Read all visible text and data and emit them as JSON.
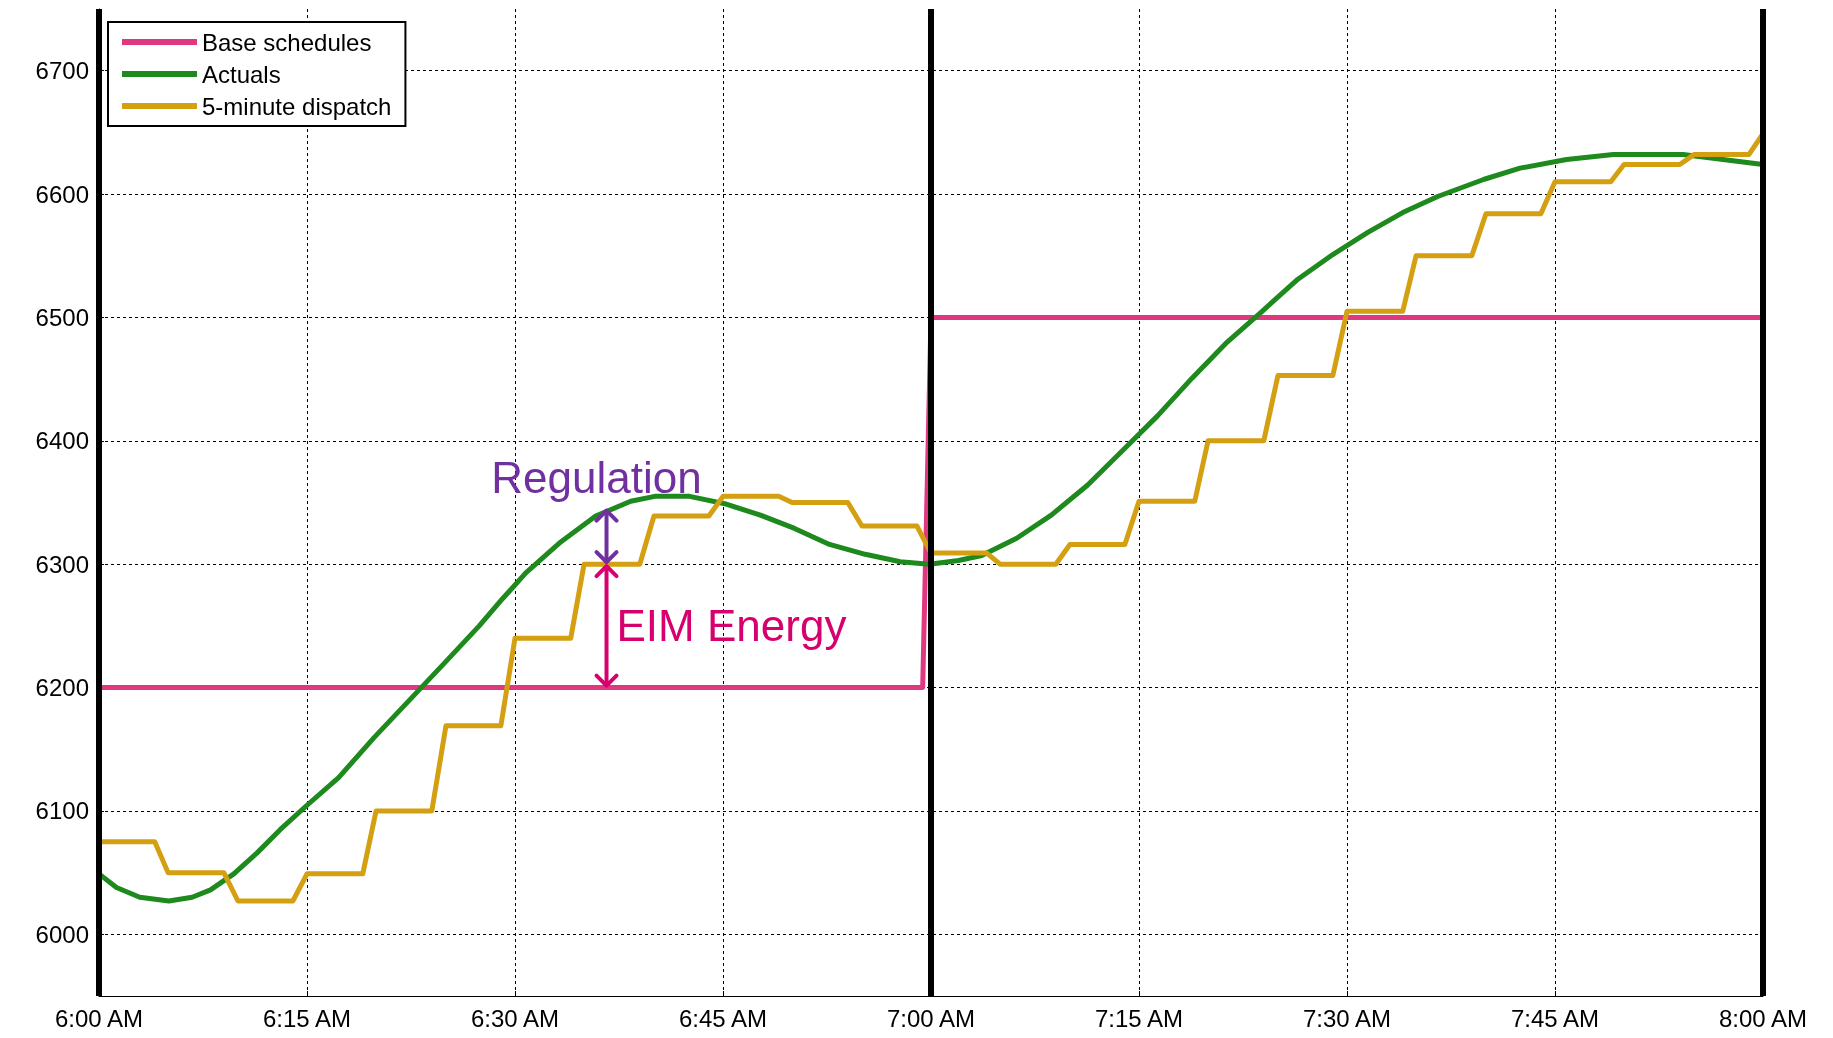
{
  "chart_data": {
    "type": "line",
    "xlim": [
      6,
      8
    ],
    "ylim": [
      5950,
      6750
    ],
    "xticks": [
      {
        "value": 6,
        "label": "6:00 AM"
      },
      {
        "value": 6.25,
        "label": "6:15 AM"
      },
      {
        "value": 6.5,
        "label": "6:30 AM"
      },
      {
        "value": 6.75,
        "label": "6:45 AM"
      },
      {
        "value": 7,
        "label": "7:00 AM"
      },
      {
        "value": 7.25,
        "label": "7:15 AM"
      },
      {
        "value": 7.5,
        "label": "7:30 AM"
      },
      {
        "value": 7.75,
        "label": "7:45 AM"
      },
      {
        "value": 8,
        "label": "8:00 AM"
      }
    ],
    "yticks": [
      6000,
      6100,
      6200,
      6300,
      6400,
      6500,
      6600,
      6700
    ],
    "grid": true,
    "legend": "top left",
    "marker": "none",
    "line_style": "solid",
    "series": [
      {
        "name": "Base schedules",
        "color": "#e0387f",
        "x": [
          6,
          6.99,
          7,
          8
        ],
        "values": [
          6200,
          6200,
          6500,
          6500
        ]
      },
      {
        "name": "Actuals",
        "color": "#1e8a1e",
        "x": [
          6,
          6.021,
          6.049,
          6.084,
          6.112,
          6.134,
          6.162,
          6.19,
          6.218,
          6.249,
          6.288,
          6.33,
          6.372,
          6.414,
          6.457,
          6.485,
          6.513,
          6.555,
          6.597,
          6.639,
          6.668,
          6.71,
          6.752,
          6.794,
          6.836,
          6.878,
          6.921,
          6.963,
          6.998,
          7.033,
          7.061,
          7.103,
          7.145,
          7.188,
          7.23,
          7.272,
          7.314,
          7.356,
          7.398,
          7.441,
          7.483,
          7.525,
          7.567,
          7.609,
          7.665,
          7.708,
          7.764,
          7.82,
          7.904,
          8
        ],
        "values": [
          6049,
          6038,
          6030,
          6027,
          6030,
          6036,
          6049,
          6066,
          6085,
          6104,
          6127,
          6159,
          6189,
          6219,
          6250,
          6272,
          6293,
          6318,
          6339,
          6351,
          6355,
          6355,
          6349,
          6340,
          6329,
          6316,
          6308,
          6302,
          6300,
          6303,
          6307,
          6321,
          6340,
          6364,
          6392,
          6420,
          6451,
          6480,
          6505,
          6531,
          6551,
          6569,
          6585,
          6598,
          6612,
          6621,
          6628,
          6632,
          6632,
          6624
        ]
      },
      {
        "name": "5-minute dispatch",
        "color": "#d4a012",
        "x": [
          6,
          6.067,
          6.083,
          6.15,
          6.167,
          6.233,
          6.25,
          6.317,
          6.333,
          6.4,
          6.417,
          6.483,
          6.5,
          6.567,
          6.583,
          6.65,
          6.667,
          6.733,
          6.75,
          6.817,
          6.833,
          6.9,
          6.917,
          6.983,
          7,
          7.067,
          7.083,
          7.15,
          7.167,
          7.233,
          7.25,
          7.317,
          7.333,
          7.4,
          7.417,
          7.483,
          7.5,
          7.567,
          7.583,
          7.65,
          7.667,
          7.733,
          7.75,
          7.817,
          7.833,
          7.9,
          7.917,
          7.983,
          8
        ],
        "values": [
          6075,
          6075,
          6050,
          6050,
          6027,
          6027,
          6049,
          6049,
          6100,
          6100,
          6169,
          6169,
          6240,
          6240,
          6300,
          6300,
          6339,
          6339,
          6355,
          6355,
          6350,
          6350,
          6331,
          6331,
          6309,
          6309,
          6300,
          6300,
          6316,
          6316,
          6351,
          6351,
          6400,
          6400,
          6453,
          6453,
          6505,
          6505,
          6550,
          6550,
          6584,
          6584,
          6610,
          6610,
          6624,
          6624,
          6632,
          6632,
          6649
        ]
      }
    ],
    "ref_lines": [
      {
        "axis": "x",
        "value": 6,
        "color": "#000000"
      },
      {
        "axis": "x",
        "value": 7,
        "color": "#000000"
      },
      {
        "axis": "x",
        "value": 8,
        "color": "#000000"
      }
    ],
    "annotations": [
      {
        "text": "Regulation",
        "x": 6.61,
        "y": 6345
      },
      {
        "text": "EIM Energy",
        "x": 6.61,
        "y": 6300
      }
    ]
  }
}
